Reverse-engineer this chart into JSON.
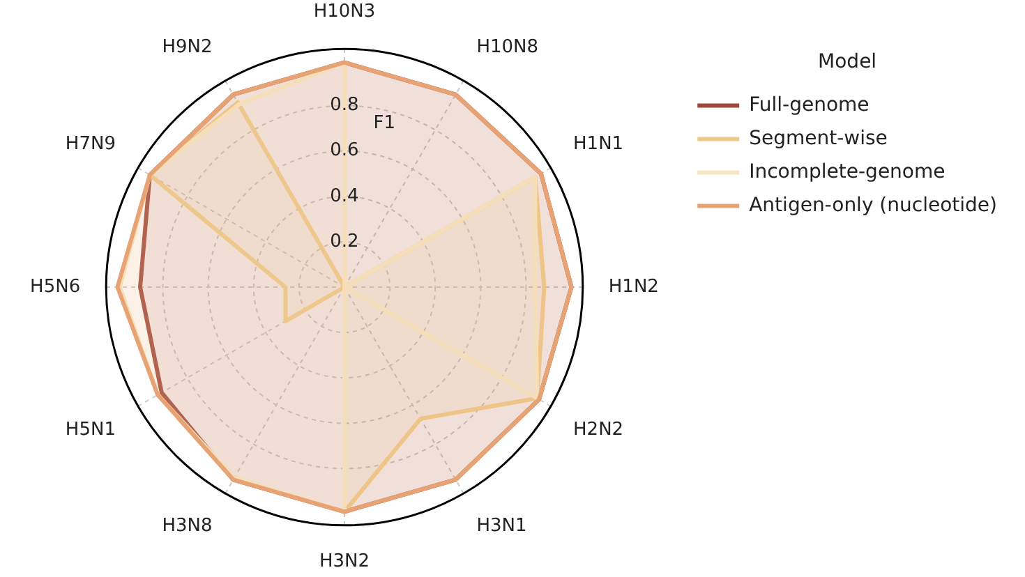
{
  "chart_data": {
    "type": "radar",
    "ylabel": "F1",
    "legend_title": "Model",
    "legend": "right",
    "categories": [
      "H10N3",
      "H10N8",
      "H1N1",
      "H1N2",
      "H2N2",
      "H3N1",
      "H3N2",
      "H3N8",
      "H5N1",
      "H5N6",
      "H7N9",
      "H9N2"
    ],
    "ylim": [
      0,
      1.05
    ],
    "yticks": [
      0.2,
      0.4,
      0.6,
      0.8
    ],
    "grid": true,
    "series": [
      {
        "name": "Full-genome",
        "color": "#a0483a",
        "values": [
          0.99,
          0.98,
          1.0,
          1.0,
          0.99,
          0.98,
          0.99,
          0.98,
          0.93,
          0.9,
          0.99,
          0.98
        ]
      },
      {
        "name": "Segment-wise",
        "color": "#f0c98a",
        "values": [
          0,
          0,
          0.97,
          0.88,
          0.98,
          0.67,
          0.99,
          0,
          0.3,
          0.26,
          0.99,
          0.94
        ]
      },
      {
        "name": "Incomplete-genome",
        "color": "#f8e6c2",
        "values": [
          0.99,
          0,
          0.97,
          0.84,
          0.98,
          0,
          0.99,
          0.97,
          0.95,
          0.99,
          0.99,
          0.93
        ]
      },
      {
        "name": "Antigen-only (nucleotide)",
        "color": "#e8a374",
        "values": [
          0.99,
          0.98,
          1.0,
          1.0,
          0.99,
          0.98,
          0.99,
          0.98,
          0.95,
          1.0,
          0.99,
          0.98
        ]
      }
    ]
  }
}
